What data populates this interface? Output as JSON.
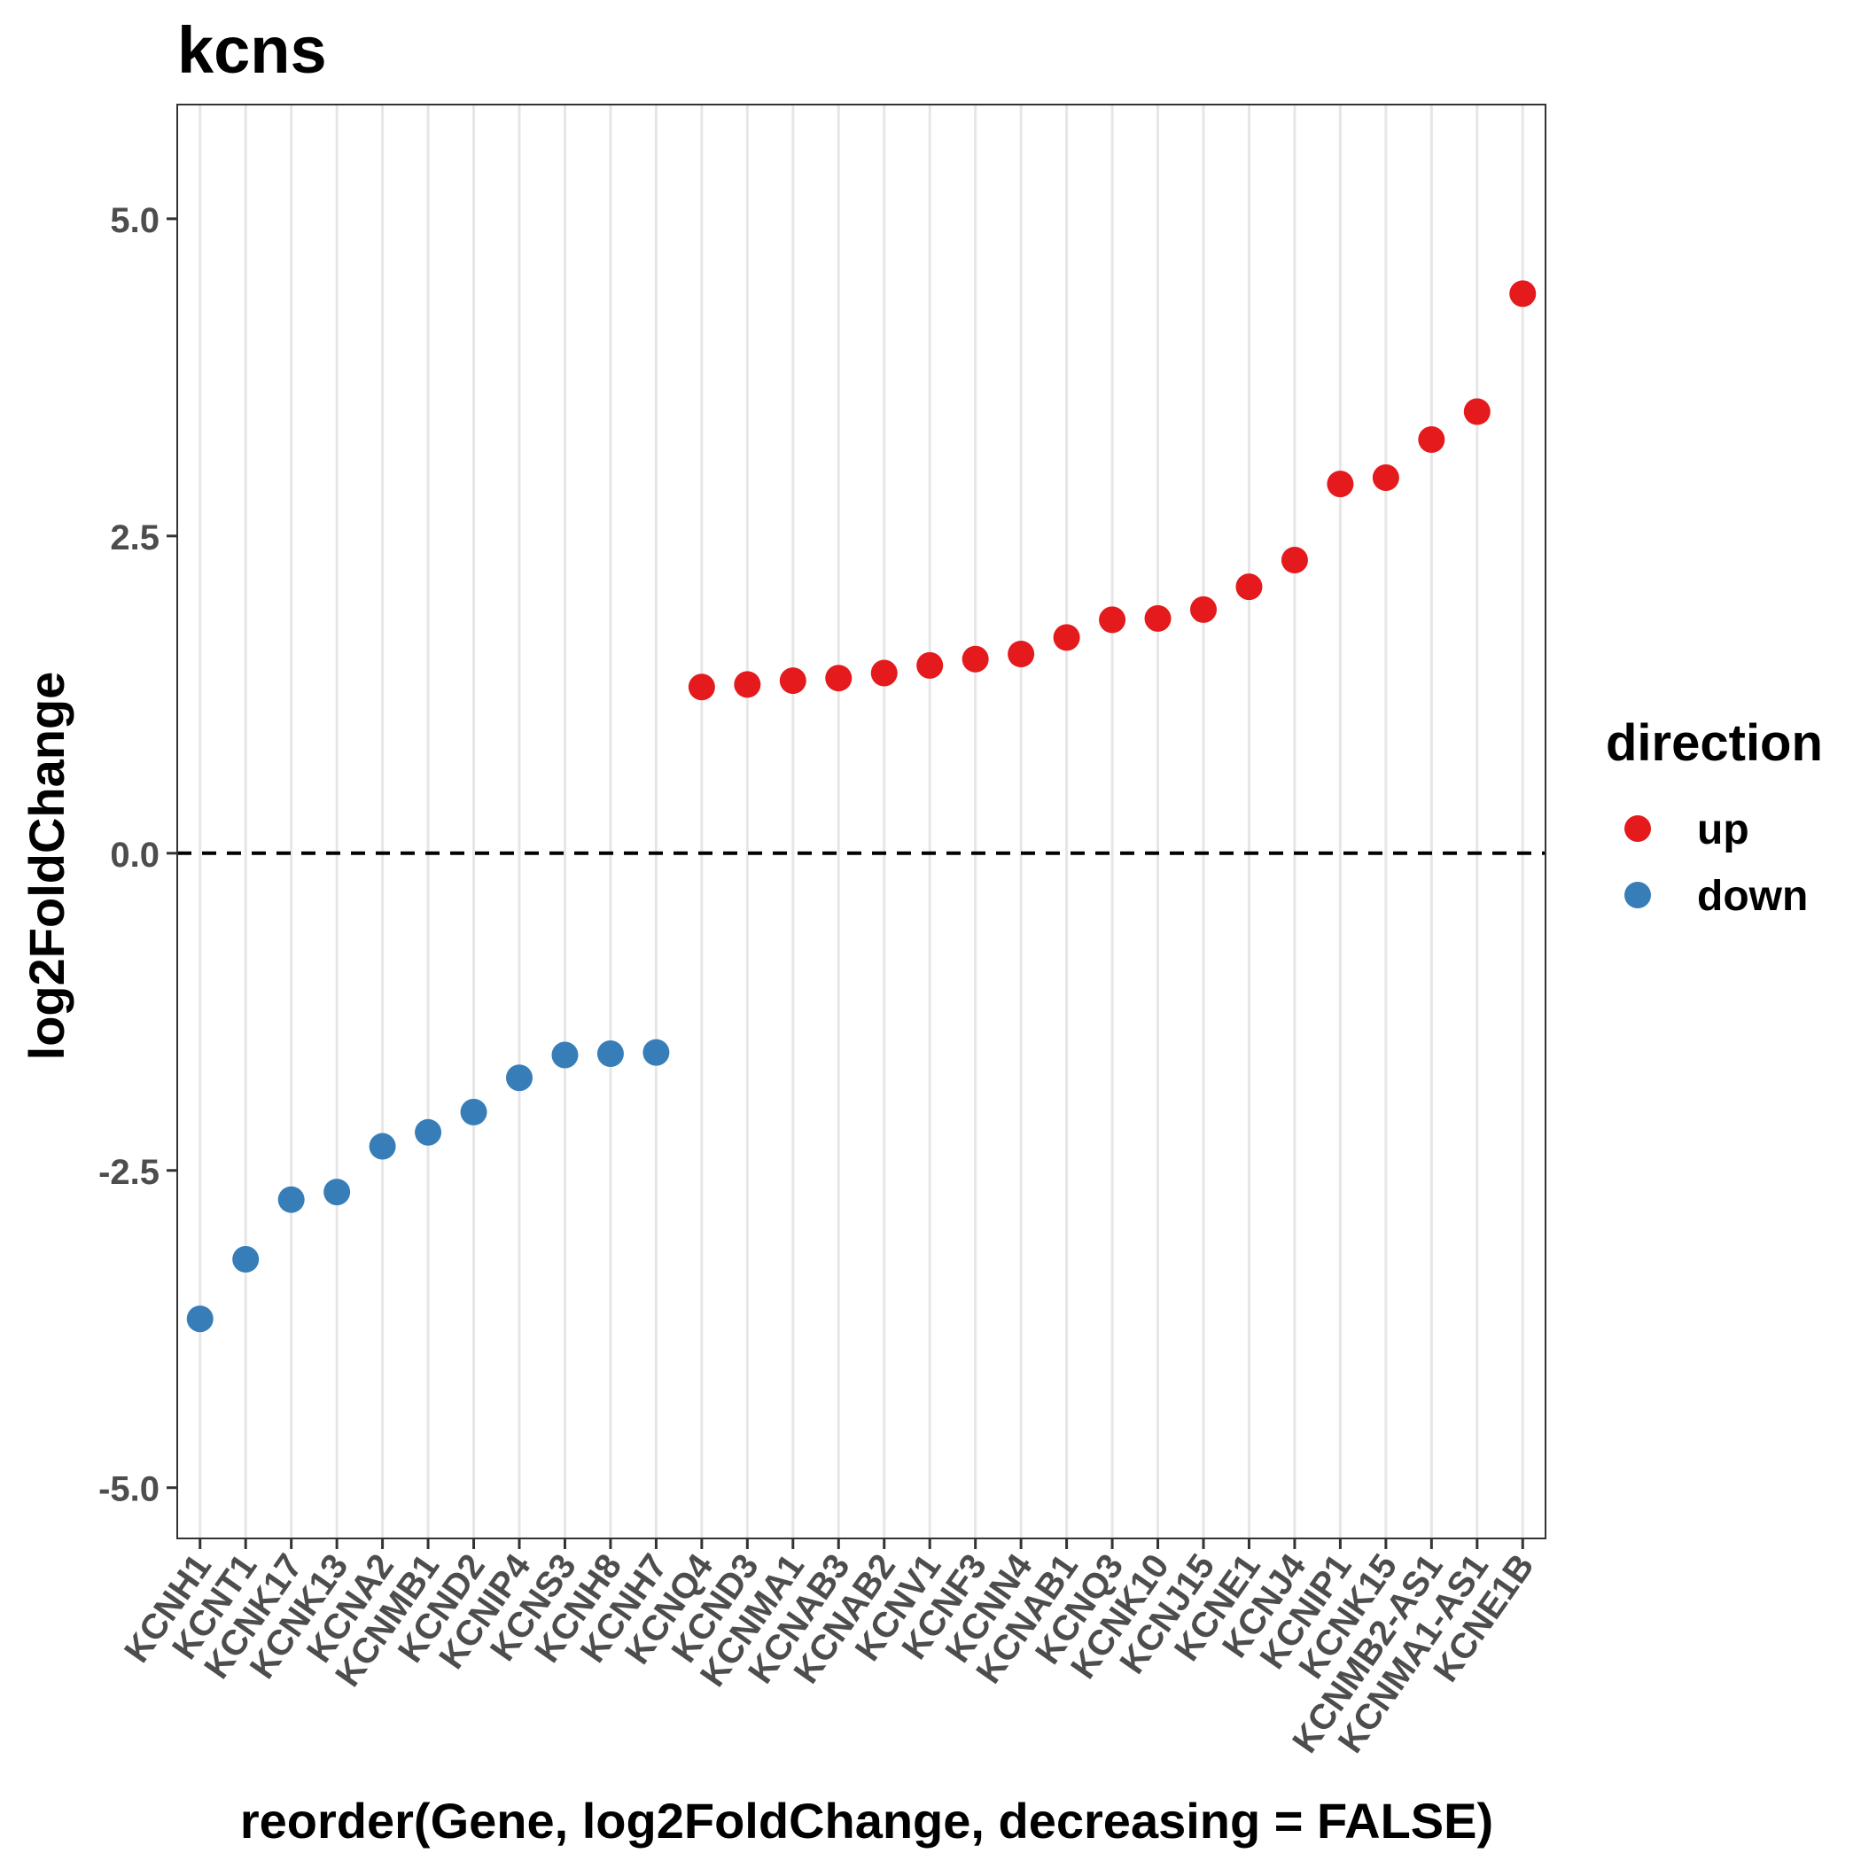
{
  "chart_data": {
    "type": "scatter",
    "title": "kcns",
    "xlabel": "reorder(Gene, log2FoldChange, decreasing = FALSE)",
    "ylabel": "log2FoldChange",
    "ylim": [
      -5.4,
      5.9
    ],
    "yticks": [
      -5.0,
      -2.5,
      0.0,
      2.5,
      5.0
    ],
    "ytick_labels": [
      "-5.0",
      "-2.5",
      "0.0",
      "2.5",
      "5.0"
    ],
    "hline": 0,
    "categories": [
      "KCNH1",
      "KCNT1",
      "KCNK17",
      "KCNK13",
      "KCNA2",
      "KCNMB1",
      "KCND2",
      "KCNIP4",
      "KCNS3",
      "KCNH8",
      "KCNH7",
      "KCNQ4",
      "KCND3",
      "KCNMA1",
      "KCNAB3",
      "KCNAB2",
      "KCNV1",
      "KCNF3",
      "KCNN4",
      "KCNAB1",
      "KCNQ3",
      "KCNK10",
      "KCNJ15",
      "KCNE1",
      "KCNJ4",
      "KCNIP1",
      "KCNK15",
      "KCNMB2-AS1",
      "KCNMA1-AS1",
      "KCNE1B"
    ],
    "values": [
      -3.67,
      -3.2,
      -2.73,
      -2.67,
      -2.31,
      -2.2,
      -2.04,
      -1.77,
      -1.59,
      -1.58,
      -1.57,
      1.31,
      1.33,
      1.36,
      1.38,
      1.42,
      1.48,
      1.53,
      1.57,
      1.7,
      1.84,
      1.85,
      1.92,
      2.1,
      2.31,
      2.91,
      2.96,
      3.26,
      3.48,
      4.41
    ],
    "direction": [
      "down",
      "down",
      "down",
      "down",
      "down",
      "down",
      "down",
      "down",
      "down",
      "down",
      "down",
      "up",
      "up",
      "up",
      "up",
      "up",
      "up",
      "up",
      "up",
      "up",
      "up",
      "up",
      "up",
      "up",
      "up",
      "up",
      "up",
      "up",
      "up",
      "up"
    ],
    "legend": {
      "title": "direction",
      "placement": "right",
      "entries": [
        {
          "label": "up",
          "color": "#e41a1c"
        },
        {
          "label": "down",
          "color": "#377eb8"
        }
      ]
    },
    "grid": true
  }
}
